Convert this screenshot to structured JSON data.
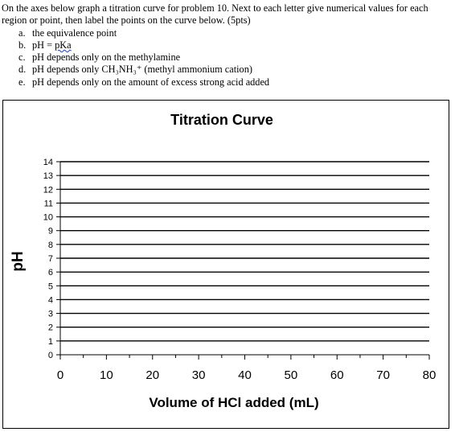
{
  "instructions": {
    "intro": "On the axes below graph a titration curve for problem 10.  Next to each letter give numerical values for each region or point, then label the points on the curve below. (5pts)",
    "items": [
      {
        "letter": "a.",
        "pre": "the equivalence point",
        "link": "",
        "post": ""
      },
      {
        "letter": "b.",
        "pre": "pH = ",
        "link": "pKa",
        "post": ""
      },
      {
        "letter": "c.",
        "pre": "pH depends only on the methylamine",
        "link": "",
        "post": ""
      },
      {
        "letter": "d.",
        "pre": "pH depends only CH₃NH₃⁺ (methyl ammonium cation)",
        "link": "",
        "post": ""
      },
      {
        "letter": "e.",
        "pre": "pH depends only on the amount of excess strong acid added",
        "link": "",
        "post": ""
      }
    ]
  },
  "chart_data": {
    "type": "line",
    "title": "Titration Curve",
    "xlabel": "Volume of HCl added (mL)",
    "ylabel": "pH",
    "xlim": [
      0,
      80
    ],
    "ylim": [
      0,
      14
    ],
    "x_ticks": [
      0,
      10,
      20,
      30,
      40,
      50,
      60,
      70,
      80
    ],
    "y_ticks": [
      0,
      1,
      2,
      3,
      4,
      5,
      6,
      7,
      8,
      9,
      10,
      11,
      12,
      13,
      14
    ],
    "grid": "horizontal",
    "series": []
  }
}
